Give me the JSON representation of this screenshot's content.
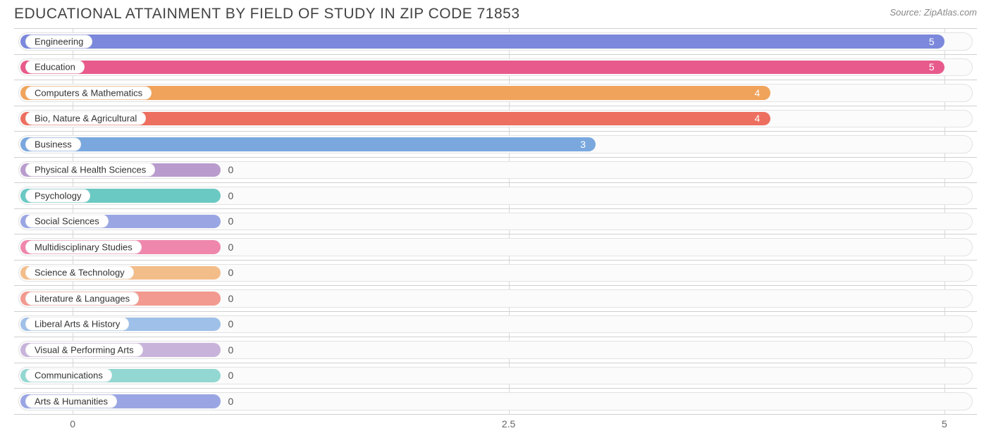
{
  "header": {
    "title": "EDUCATIONAL ATTAINMENT BY FIELD OF STUDY IN ZIP CODE 71853",
    "source": "Source: ZipAtlas.com"
  },
  "chart": {
    "type": "bar-horizontal",
    "background_color": "#ffffff",
    "track_bg": "#fbfbfb",
    "track_border": "#e2e2e2",
    "grid_color": "#d8d8d8",
    "row_border": "#d0d0d0",
    "title_color": "#444444",
    "source_color": "#888888",
    "label_fontsize": 13,
    "value_fontsize": 14,
    "xmin": -0.3,
    "xmax": 5.15,
    "xticks": [
      {
        "value": 0,
        "label": "0"
      },
      {
        "value": 2.5,
        "label": "2.5"
      },
      {
        "value": 5,
        "label": "5"
      }
    ],
    "min_bar_value": 0.85,
    "rows": [
      {
        "label": "Engineering",
        "value": 5,
        "color": "#7b88db",
        "value_inside": true
      },
      {
        "label": "Education",
        "value": 5,
        "color": "#e85a8b",
        "value_inside": true
      },
      {
        "label": "Computers & Mathematics",
        "value": 4,
        "color": "#f0a35a",
        "value_inside": true
      },
      {
        "label": "Bio, Nature & Agricultural",
        "value": 4,
        "color": "#ed6f5f",
        "value_inside": true
      },
      {
        "label": "Business",
        "value": 3,
        "color": "#7aa8de",
        "value_inside": true
      },
      {
        "label": "Physical & Health Sciences",
        "value": 0,
        "color": "#b99bce",
        "value_inside": false
      },
      {
        "label": "Psychology",
        "value": 0,
        "color": "#6bc9c3",
        "value_inside": false
      },
      {
        "label": "Social Sciences",
        "value": 0,
        "color": "#9aa6e3",
        "value_inside": false
      },
      {
        "label": "Multidisciplinary Studies",
        "value": 0,
        "color": "#ef87ad",
        "value_inside": false
      },
      {
        "label": "Science & Technology",
        "value": 0,
        "color": "#f3bd8a",
        "value_inside": false
      },
      {
        "label": "Literature & Languages",
        "value": 0,
        "color": "#f29a8f",
        "value_inside": false
      },
      {
        "label": "Liberal Arts & History",
        "value": 0,
        "color": "#9fc0e8",
        "value_inside": false
      },
      {
        "label": "Visual & Performing Arts",
        "value": 0,
        "color": "#c8b3da",
        "value_inside": false
      },
      {
        "label": "Communications",
        "value": 0,
        "color": "#93d7d2",
        "value_inside": false
      },
      {
        "label": "Arts & Humanities",
        "value": 0,
        "color": "#9aa6e3",
        "value_inside": false
      }
    ]
  }
}
